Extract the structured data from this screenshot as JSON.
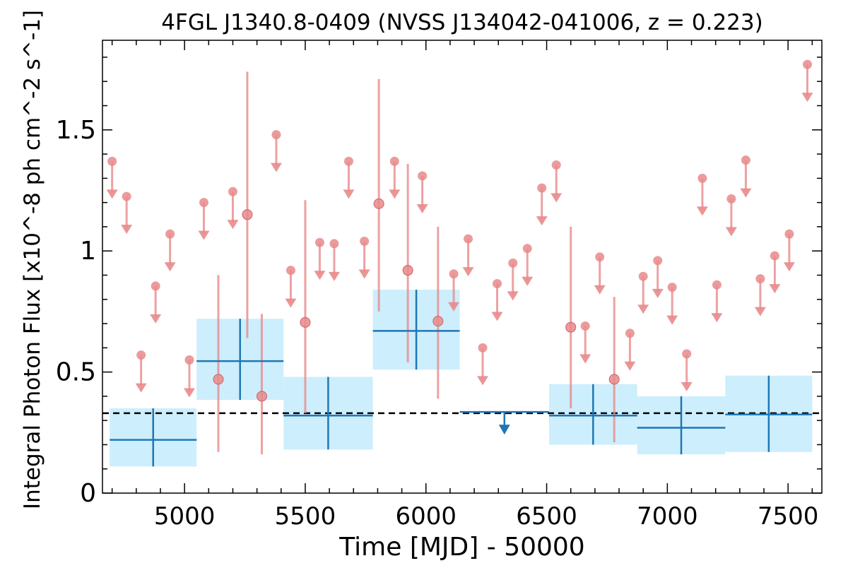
{
  "chart_data": {
    "type": "scatter",
    "title": "4FGL J1340.8-0409 (NVSS J134042-041006, z = 0.223)",
    "xlabel": "Time [MJD] - 50000",
    "ylabel": "Integral Photon Flux [x10^-8 ph cm^-2 s^-1]",
    "xlim": [
      4660,
      7640
    ],
    "ylim": [
      0,
      1.87
    ],
    "xticks": [
      5000,
      5500,
      6000,
      6500,
      7000,
      7500
    ],
    "xtick_labels": [
      "5000",
      "5500",
      "6000",
      "6500",
      "7000",
      "7500"
    ],
    "yticks": [
      0,
      0.5,
      1,
      1.5
    ],
    "ytick_labels": [
      "0",
      "0.5",
      "1",
      "1.5"
    ],
    "grid": false,
    "reference_line": {
      "y": 0.33,
      "style": "dashed",
      "color": "#000000"
    },
    "colors": {
      "short_bins": "#e8898b",
      "long_bins": "#1f77b4",
      "long_bins_fill": "#cdeefc"
    },
    "series": [
      {
        "binning": "short",
        "detections": [
          {
            "x": 5140,
            "y": 0.47,
            "ylo": 0.17,
            "yhi": 0.9
          },
          {
            "x": 5260,
            "y": 1.15,
            "ylo": 0.64,
            "yhi": 1.74
          },
          {
            "x": 5320,
            "y": 0.4,
            "ylo": 0.16,
            "yhi": 0.74
          },
          {
            "x": 5500,
            "y": 0.705,
            "ylo": 0.33,
            "yhi": 1.21
          },
          {
            "x": 5805,
            "y": 1.195,
            "ylo": 0.75,
            "yhi": 1.71
          },
          {
            "x": 5925,
            "y": 0.92,
            "ylo": 0.54,
            "yhi": 1.36
          },
          {
            "x": 6050,
            "y": 0.71,
            "ylo": 0.39,
            "yhi": 1.1
          },
          {
            "x": 6600,
            "y": 0.685,
            "ylo": 0.35,
            "yhi": 1.1
          },
          {
            "x": 6780,
            "y": 0.47,
            "ylo": 0.21,
            "yhi": 0.81
          }
        ],
        "upper_limits": [
          {
            "x": 4700,
            "y": 1.37
          },
          {
            "x": 4760,
            "y": 1.225
          },
          {
            "x": 4820,
            "y": 0.57
          },
          {
            "x": 4880,
            "y": 0.855
          },
          {
            "x": 4940,
            "y": 1.07
          },
          {
            "x": 5020,
            "y": 0.55
          },
          {
            "x": 5080,
            "y": 1.2
          },
          {
            "x": 5200,
            "y": 1.245
          },
          {
            "x": 5380,
            "y": 1.48
          },
          {
            "x": 5440,
            "y": 0.92
          },
          {
            "x": 5560,
            "y": 1.035
          },
          {
            "x": 5620,
            "y": 1.03
          },
          {
            "x": 5680,
            "y": 1.37
          },
          {
            "x": 5745,
            "y": 1.04
          },
          {
            "x": 5870,
            "y": 1.37
          },
          {
            "x": 5985,
            "y": 1.31
          },
          {
            "x": 6115,
            "y": 0.905
          },
          {
            "x": 6175,
            "y": 1.05
          },
          {
            "x": 6235,
            "y": 0.6
          },
          {
            "x": 6295,
            "y": 0.865
          },
          {
            "x": 6360,
            "y": 0.95
          },
          {
            "x": 6420,
            "y": 1.01
          },
          {
            "x": 6480,
            "y": 1.26
          },
          {
            "x": 6540,
            "y": 1.355
          },
          {
            "x": 6660,
            "y": 0.69
          },
          {
            "x": 6720,
            "y": 0.975
          },
          {
            "x": 6845,
            "y": 0.66
          },
          {
            "x": 6900,
            "y": 0.895
          },
          {
            "x": 6960,
            "y": 0.96
          },
          {
            "x": 7020,
            "y": 0.85
          },
          {
            "x": 7080,
            "y": 0.575
          },
          {
            "x": 7145,
            "y": 1.3
          },
          {
            "x": 7205,
            "y": 0.86
          },
          {
            "x": 7265,
            "y": 1.215
          },
          {
            "x": 7325,
            "y": 1.375
          },
          {
            "x": 7385,
            "y": 0.885
          },
          {
            "x": 7445,
            "y": 0.98
          },
          {
            "x": 7505,
            "y": 1.07
          },
          {
            "x": 7580,
            "y": 1.77
          }
        ]
      },
      {
        "binning": "long",
        "detections": [
          {
            "x0": 4690,
            "x1": 5050,
            "y": 0.22,
            "ylo": 0.11,
            "yhi": 0.35
          },
          {
            "x0": 5050,
            "x1": 5410,
            "y": 0.545,
            "ylo": 0.385,
            "yhi": 0.72
          },
          {
            "x0": 5410,
            "x1": 5780,
            "y": 0.32,
            "ylo": 0.18,
            "yhi": 0.48
          },
          {
            "x0": 5780,
            "x1": 6140,
            "y": 0.67,
            "ylo": 0.51,
            "yhi": 0.84
          },
          {
            "x0": 6510,
            "x1": 6875,
            "y": 0.32,
            "ylo": 0.2,
            "yhi": 0.45
          },
          {
            "x0": 6875,
            "x1": 7240,
            "y": 0.27,
            "ylo": 0.16,
            "yhi": 0.4
          },
          {
            "x0": 7240,
            "x1": 7600,
            "y": 0.325,
            "ylo": 0.17,
            "yhi": 0.485
          }
        ],
        "upper_limits": [
          {
            "x0": 6140,
            "x1": 6510,
            "y": 0.335
          }
        ]
      }
    ]
  }
}
